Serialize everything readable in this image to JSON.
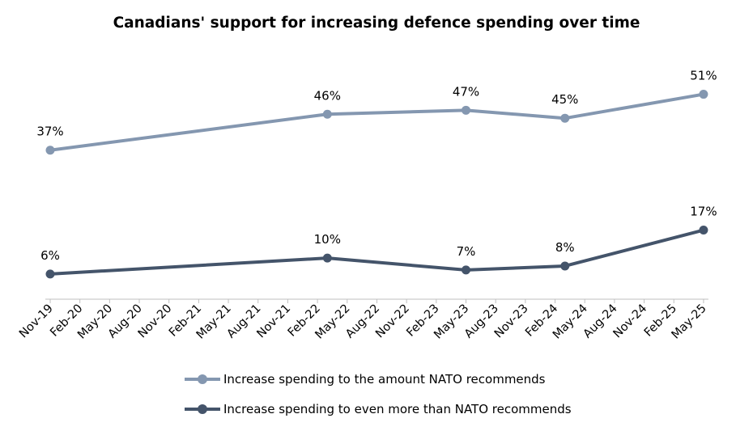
{
  "chart_data": {
    "type": "line",
    "title": "Canadians' support for increasing defence spending over time",
    "x": [
      "Nov-19",
      "Feb-20",
      "May-20",
      "Aug-20",
      "Nov-20",
      "Feb-21",
      "May-21",
      "Aug-21",
      "Nov-21",
      "Feb-22",
      "May-22",
      "Aug-22",
      "Nov-22",
      "Feb-23",
      "May-23",
      "Aug-23",
      "Nov-23",
      "Feb-24",
      "May-24",
      "Aug-24",
      "Nov-24",
      "Feb-25",
      "May-25"
    ],
    "series": [
      {
        "name": "Increase spending to the amount NATO recommends",
        "color": "#8497B0",
        "points": [
          {
            "x": "Nov-19",
            "y": 37,
            "label": "37%"
          },
          {
            "x": "Mar-22",
            "y": 46,
            "label": "46%"
          },
          {
            "x": "May-23",
            "y": 47,
            "label": "47%"
          },
          {
            "x": "Mar-24",
            "y": 45,
            "label": "45%"
          },
          {
            "x": "May-25",
            "y": 51,
            "label": "51%"
          }
        ]
      },
      {
        "name": "Increase spending to even more than NATO recommends",
        "color": "#44546A",
        "points": [
          {
            "x": "Nov-19",
            "y": 6,
            "label": "6%"
          },
          {
            "x": "Mar-22",
            "y": 10,
            "label": "10%"
          },
          {
            "x": "May-23",
            "y": 7,
            "label": "7%"
          },
          {
            "x": "Mar-24",
            "y": 8,
            "label": "8%"
          },
          {
            "x": "May-25",
            "y": 17,
            "label": "17%"
          }
        ]
      }
    ],
    "ylim": [
      0,
      55
    ],
    "grid": false,
    "y_axis_visible": false,
    "legend_position": "bottom"
  }
}
